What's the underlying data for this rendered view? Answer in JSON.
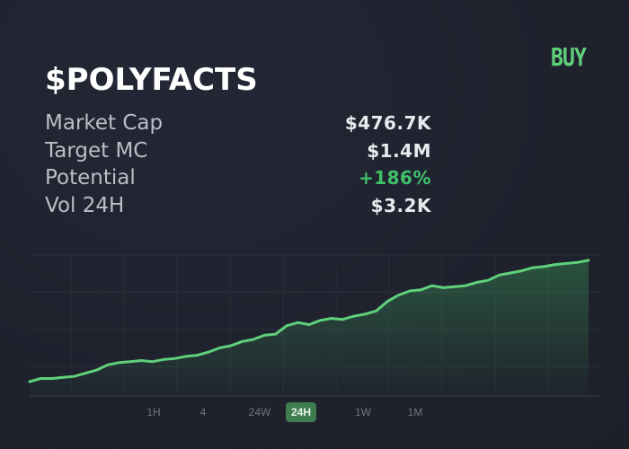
{
  "header": {
    "buy_label": "BUY",
    "title": "$POLYFACTS"
  },
  "stats": [
    {
      "label": "Market Cap",
      "value": "$476.7K"
    },
    {
      "label": "Target MC",
      "value": "$1.4M"
    },
    {
      "label": "Potential",
      "value": "+186%"
    },
    {
      "label": "Vol 24H",
      "value": "$3.2K"
    }
  ],
  "colors": {
    "background": "#1f222d",
    "accent_green": "#5fd17b",
    "positive": "#3fc16a",
    "line": "#5fd17b",
    "active_timeframe": "#3f7d4f"
  },
  "timeframes": {
    "items": [
      "1H",
      "4",
      "24W",
      "24H",
      "1W",
      "1M"
    ],
    "active": "24H"
  },
  "chart_data": {
    "type": "area",
    "x": [
      0,
      1,
      2,
      3,
      4,
      5,
      6,
      7,
      8,
      9,
      10,
      11,
      12,
      13,
      14,
      15,
      16,
      17,
      18,
      19,
      20,
      21,
      22,
      23,
      24,
      25,
      26,
      27,
      28,
      29,
      30,
      31,
      32,
      33,
      34,
      35,
      36,
      37,
      38,
      39,
      40,
      41,
      42,
      43,
      44,
      45,
      46,
      47,
      48,
      49,
      50
    ],
    "values": [
      0.0,
      0.03,
      0.03,
      0.04,
      0.05,
      0.08,
      0.11,
      0.16,
      0.18,
      0.19,
      0.2,
      0.19,
      0.21,
      0.22,
      0.24,
      0.25,
      0.28,
      0.32,
      0.34,
      0.38,
      0.4,
      0.44,
      0.45,
      0.53,
      0.56,
      0.54,
      0.58,
      0.6,
      0.59,
      0.62,
      0.64,
      0.67,
      0.76,
      0.82,
      0.86,
      0.87,
      0.91,
      0.89,
      0.9,
      0.91,
      0.94,
      0.96,
      1.01,
      1.03,
      1.05,
      1.08,
      1.09,
      1.11,
      1.12,
      1.13,
      1.15
    ],
    "ylim": [
      0,
      1.2
    ],
    "grid": true,
    "title": "",
    "xlabel": "",
    "ylabel": ""
  }
}
